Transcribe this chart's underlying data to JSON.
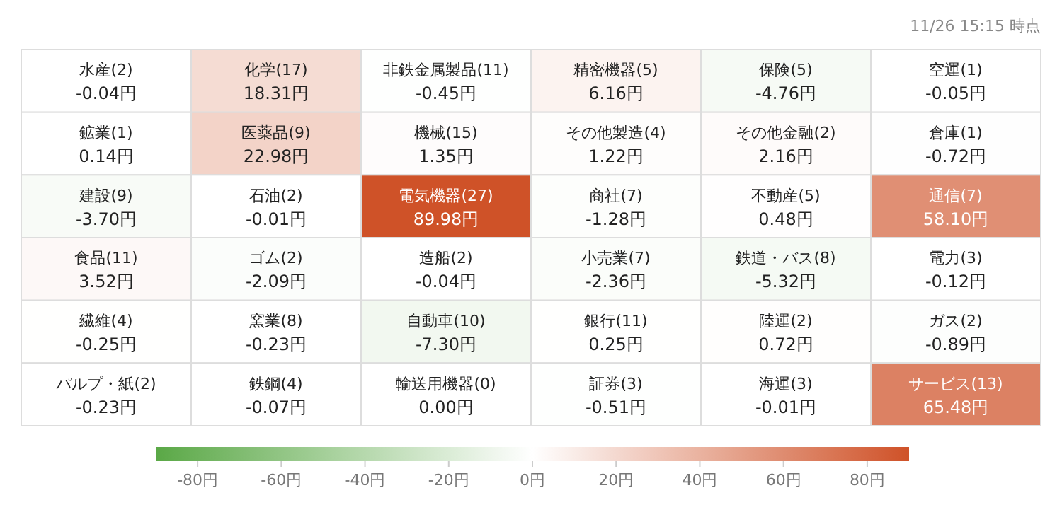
{
  "chart_data": {
    "type": "heatmap",
    "categories": [
      null,
      null,
      null,
      null,
      null,
      null
    ],
    "y_categories": [
      null,
      null,
      null,
      null,
      null,
      null
    ],
    "cells": [
      [
        -0.04,
        18.31,
        -0.45,
        6.16,
        -4.76,
        -0.05
      ],
      [
        0.14,
        22.98,
        1.35,
        1.22,
        2.16,
        -0.72
      ],
      [
        -3.7,
        -0.01,
        89.98,
        -1.28,
        0.48,
        58.1
      ],
      [
        3.52,
        -2.09,
        -0.04,
        -2.36,
        -5.32,
        -0.12
      ],
      [
        -0.25,
        -0.23,
        -7.3,
        0.25,
        0.72,
        -0.89
      ],
      [
        -0.23,
        -0.07,
        0.0,
        -0.51,
        -0.01,
        65.48
      ]
    ],
    "cell_labels": [
      [
        "水産(2)\n-0.04円",
        "化学(17)\n18.31円",
        "非鉄金属製品(11)\n-0.45円",
        "精密機器(5)\n6.16円",
        "保険(5)\n-4.76円",
        "空運(1)\n-0.05円"
      ],
      [
        "鉱業(1)\n0.14円",
        "医薬品(9)\n22.98円",
        "機械(15)\n1.35円",
        "その他製造(4)\n1.22円",
        "その他金融(2)\n2.16円",
        "倉庫(1)\n-0.72円"
      ],
      [
        "建設(9)\n-3.70円",
        "石油(2)\n-0.01円",
        "電気機器(27)\n89.98円",
        "商社(7)\n-1.28円",
        "不動産(5)\n0.48円",
        "通信(7)\n58.10円"
      ],
      [
        "食品(11)\n3.52円",
        "ゴム(2)\n-2.09円",
        "造船(2)\n-0.04円",
        "小売業(7)\n-2.36円",
        "鉄道・バス(8)\n-5.32円",
        "電力(3)\n-0.12円"
      ],
      [
        "繊維(4)\n-0.25円",
        "窯業(8)\n-0.23円",
        "自動車(10)\n-7.30円",
        "銀行(11)\n0.25円",
        "陸運(2)\n0.72円",
        "ガス(2)\n-0.89円"
      ],
      [
        "パルプ・紙(2)\n-0.23円",
        "鉄鋼(4)\n-0.07円",
        "輸送用機器(0)\n0.00円",
        "証券(3)\n-0.51円",
        "海運(3)\n-0.01円",
        "サービス(13)\n65.48円"
      ]
    ],
    "clim": [
      -90,
      90
    ],
    "cticks": [
      {
        "value": -80,
        "label": "-80円"
      },
      {
        "value": -60,
        "label": "-60円"
      },
      {
        "value": -40,
        "label": "-40円"
      },
      {
        "value": -20,
        "label": "-20円"
      },
      {
        "value": 0,
        "label": "0円"
      },
      {
        "value": 20,
        "label": "20円"
      },
      {
        "value": 40,
        "label": "40円"
      },
      {
        "value": 60,
        "label": "60円"
      },
      {
        "value": 80,
        "label": "80円"
      }
    ],
    "annotations": [
      "11/26 15:15 時点"
    ]
  }
}
